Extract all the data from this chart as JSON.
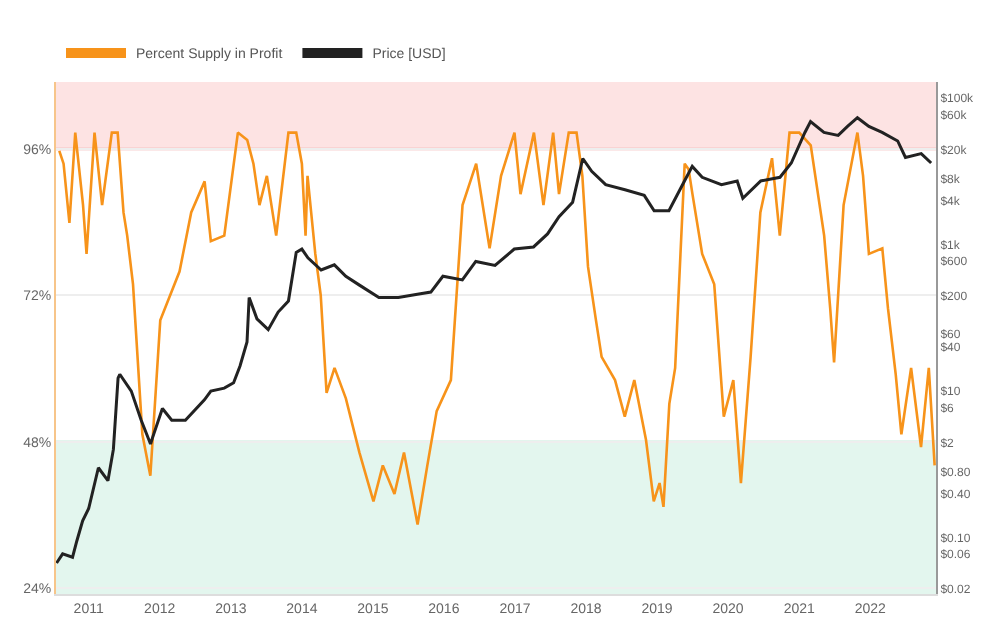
{
  "chart_data": {
    "type": "line",
    "x": [
      "2010-08-03",
      "2010-08-25",
      "2010-09-24",
      "2010-10-24",
      "2010-12-03",
      "2010-12-21",
      "2011-01-31",
      "2011-03-11",
      "2011-04-30",
      "2011-05-30",
      "2011-06-29",
      "2011-07-18",
      "2011-08-17",
      "2011-10-04",
      "2011-11-14",
      "2012-01-04",
      "2012-04-12",
      "2012-06-11",
      "2012-08-19",
      "2012-09-20",
      "2012-11-28",
      "2013-02-06",
      "2013-03-26",
      "2013-04-27",
      "2013-05-28",
      "2013-07-05",
      "2013-08-22",
      "2013-10-24",
      "2013-12-03",
      "2014-01-01",
      "2014-01-20",
      "2014-01-30",
      "2014-03-11",
      "2014-04-08",
      "2014-05-08",
      "2014-06-18",
      "2014-08-15",
      "2014-10-24",
      "2015-01-04",
      "2015-02-21",
      "2015-04-22",
      "2015-06-10",
      "2015-08-19",
      "2015-10-08",
      "2015-11-25",
      "2016-02-06",
      "2016-04-06",
      "2016-06-15",
      "2016-08-23",
      "2016-10-21",
      "2016-12-29",
      "2017-01-29",
      "2017-04-08",
      "2017-05-27",
      "2017-07-16",
      "2017-08-15",
      "2017-10-04",
      "2017-11-13",
      "2017-12-13",
      "2018-01-11",
      "2018-02-21",
      "2018-03-22",
      "2018-05-30",
      "2018-07-19",
      "2018-09-06",
      "2018-11-05",
      "2018-12-15",
      "2019-01-14",
      "2019-02-03",
      "2019-03-05",
      "2019-04-04",
      "2019-05-23",
      "2019-06-12",
      "2019-07-02",
      "2019-08-21",
      "2019-10-22",
      "2019-12-10",
      "2020-01-28",
      "2020-03-07",
      "2020-04-26",
      "2020-06-15",
      "2020-08-14",
      "2020-09-23",
      "2020-11-12",
      "2021-01-01",
      "2021-03-01",
      "2021-05-09",
      "2021-06-09",
      "2021-06-29",
      "2021-08-17",
      "2021-10-27",
      "2021-11-25",
      "2021-12-25",
      "2022-03-04",
      "2022-04-02",
      "2022-05-12",
      "2022-06-10",
      "2022-07-30",
      "2022-09-19",
      "2022-10-29",
      "2022-11-28"
    ],
    "series": [
      {
        "name": "Percent Supply in Profit",
        "color": "#f7931a",
        "values": [
          95.7,
          93.6,
          83.9,
          98.7,
          86.8,
          78.8,
          98.7,
          86.8,
          98.7,
          98.7,
          85.6,
          81.8,
          73.8,
          49.2,
          42.4,
          67.9,
          75.9,
          85.6,
          90.7,
          80.9,
          81.8,
          98.7,
          97.5,
          93.6,
          86.8,
          91.6,
          81.8,
          98.7,
          98.7,
          93.6,
          81.8,
          91.6,
          78.8,
          72.0,
          56.0,
          60.1,
          55.1,
          46.2,
          38.2,
          44.1,
          39.4,
          46.2,
          34.4,
          44.1,
          53.0,
          58.1,
          86.8,
          93.6,
          79.7,
          91.6,
          98.7,
          88.6,
          98.7,
          86.8,
          98.7,
          88.6,
          98.7,
          98.7,
          91.6,
          76.7,
          67.9,
          61.9,
          58.1,
          52.1,
          58.1,
          48.3,
          38.2,
          41.2,
          37.3,
          54.2,
          60.1,
          93.6,
          92.7,
          88.6,
          78.8,
          73.8,
          52.1,
          58.1,
          41.2,
          61.9,
          85.6,
          94.5,
          81.8,
          98.7,
          98.7,
          96.6,
          81.8,
          69.9,
          61.0,
          86.8,
          98.7,
          91.6,
          78.8,
          79.7,
          69.9,
          59.0,
          49.2,
          60.1,
          47.1,
          60.1,
          44.1
        ]
      },
      {
        "name": "Price [USD]",
        "color": "#222222",
        "axis": "y2",
        "x": [
          "2010-07-20",
          "2010-08-20",
          "2010-10-10",
          "2010-11-01",
          "2010-12-01",
          "2011-01-01",
          "2011-02-20",
          "2011-04-10",
          "2011-05-08",
          "2011-06-01",
          "2011-06-10",
          "2011-08-08",
          "2011-09-28",
          "2011-11-15",
          "2011-11-25",
          "2012-01-15",
          "2012-03-03",
          "2012-05-12",
          "2012-08-18",
          "2012-09-20",
          "2012-11-28",
          "2013-01-15",
          "2013-02-17",
          "2013-03-25",
          "2013-04-05",
          "2013-05-15",
          "2013-07-12",
          "2013-09-01",
          "2013-10-24",
          "2013-12-03",
          "2014-01-01",
          "2014-02-01",
          "2014-04-10",
          "2014-06-17",
          "2014-08-15",
          "2014-10-24",
          "2015-02-01",
          "2015-05-12",
          "2015-08-18",
          "2015-10-26",
          "2015-12-27",
          "2016-04-05",
          "2016-06-13",
          "2016-09-20",
          "2016-12-28",
          "2017-04-06",
          "2017-06-17",
          "2017-08-15",
          "2017-10-24",
          "2017-12-15",
          "2018-01-30",
          "2018-04-12",
          "2018-07-20",
          "2018-10-27",
          "2018-12-17",
          "2019-03-03",
          "2019-05-22",
          "2019-07-01",
          "2019-08-21",
          "2019-11-28",
          "2020-02-17",
          "2020-03-17",
          "2020-06-17",
          "2020-09-24",
          "2020-11-21",
          "2021-01-30",
          "2021-02-28",
          "2021-05-08",
          "2021-07-20",
          "2021-09-06",
          "2021-10-27",
          "2021-12-25",
          "2022-03-03",
          "2022-05-22",
          "2022-07-01",
          "2022-09-20",
          "2022-11-10"
        ],
        "values": [
          0.045,
          0.06,
          0.054,
          0.09,
          0.17,
          0.25,
          0.9,
          0.6,
          1.6,
          15,
          17,
          10,
          4,
          1.9,
          2.3,
          5.8,
          4,
          4,
          7.6,
          10,
          11,
          13,
          22,
          47,
          190,
          97,
          69,
          120,
          170,
          780,
          870,
          660,
          450,
          530,
          370,
          280,
          190,
          190,
          210,
          225,
          370,
          330,
          590,
          520,
          870,
          930,
          1400,
          2400,
          3800,
          15000,
          10000,
          6600,
          5600,
          4700,
          2900,
          2900,
          7400,
          11700,
          8300,
          6600,
          7400,
          4300,
          7400,
          8300,
          13000,
          34000,
          48000,
          34000,
          31000,
          41000,
          54000,
          41000,
          34000,
          26000,
          15500,
          17500,
          13000
        ]
      }
    ],
    "xlim": [
      "2010-07-17",
      "2022-12-05"
    ],
    "xticks": [
      {
        "value": "2011-01-01",
        "label": "2011"
      },
      {
        "value": "2012-01-01",
        "label": "2012"
      },
      {
        "value": "2013-01-01",
        "label": "2013"
      },
      {
        "value": "2014-01-01",
        "label": "2014"
      },
      {
        "value": "2015-01-01",
        "label": "2015"
      },
      {
        "value": "2016-01-01",
        "label": "2016"
      },
      {
        "value": "2017-01-01",
        "label": "2017"
      },
      {
        "value": "2018-01-01",
        "label": "2018"
      },
      {
        "value": "2019-01-01",
        "label": "2019"
      },
      {
        "value": "2020-01-01",
        "label": "2020"
      },
      {
        "value": "2021-01-01",
        "label": "2021"
      },
      {
        "value": "2022-01-01",
        "label": "2022"
      }
    ],
    "ylim": [
      23,
      107
    ],
    "yticks": [
      {
        "value": 24,
        "label": "24%"
      },
      {
        "value": 48,
        "label": "48%"
      },
      {
        "value": 72,
        "label": "72%"
      },
      {
        "value": 96,
        "label": "96%"
      }
    ],
    "y2lim": [
      0.017,
      166000
    ],
    "y2ticks": [
      {
        "value": 0.02,
        "label": "$0.02"
      },
      {
        "value": 0.06,
        "label": "$0.06"
      },
      {
        "value": 0.1,
        "label": "$0.10"
      },
      {
        "value": 0.4,
        "label": "$0.40"
      },
      {
        "value": 0.8,
        "label": "$0.80"
      },
      {
        "value": 2,
        "label": "$2"
      },
      {
        "value": 6,
        "label": "$6"
      },
      {
        "value": 10,
        "label": "$10"
      },
      {
        "value": 40,
        "label": "$40"
      },
      {
        "value": 60,
        "label": "$60"
      },
      {
        "value": 200,
        "label": "$200"
      },
      {
        "value": 600,
        "label": "$600"
      },
      {
        "value": 1000,
        "label": "$1k"
      },
      {
        "value": 4000,
        "label": "$4k"
      },
      {
        "value": 8000,
        "label": "$8k"
      },
      {
        "value": 20000,
        "label": "$20k"
      },
      {
        "value": 60000,
        "label": "$60k"
      },
      {
        "value": 100000,
        "label": "$100k"
      }
    ],
    "log": "y2",
    "bands": [
      {
        "axis": "y",
        "from": 96,
        "to": 107,
        "color": "#fde3e3"
      },
      {
        "axis": "y",
        "from": 23,
        "to": 48,
        "color": "#e3f6ee"
      }
    ],
    "ref_lines": [
      {
        "axis": "y",
        "value": 96,
        "color": "#f0a5a5"
      },
      {
        "axis": "y",
        "value": 48,
        "color": "#c8ecdc"
      }
    ],
    "grid": "y",
    "legend": "top left",
    "marker": "none",
    "line_style": "solid"
  }
}
